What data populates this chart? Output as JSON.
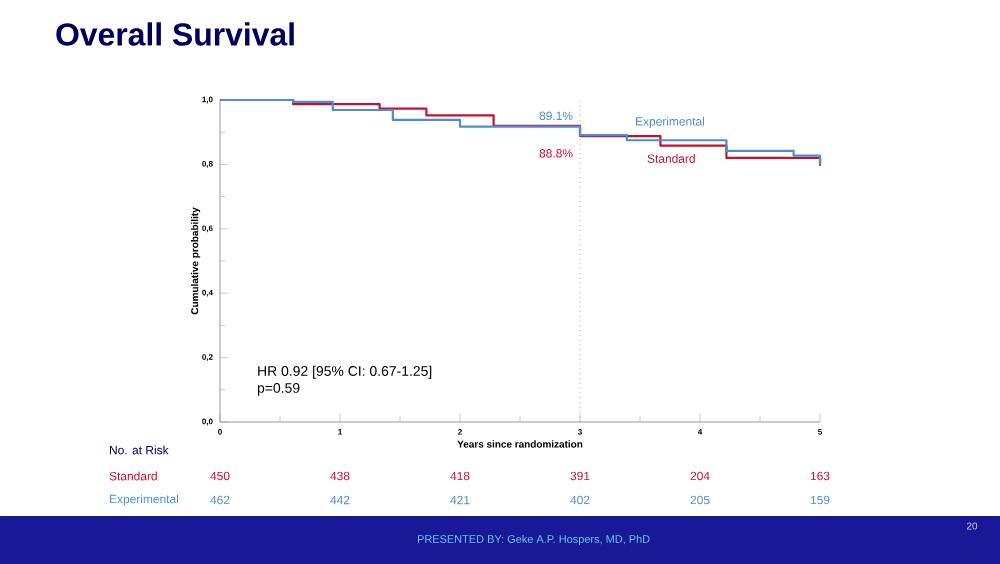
{
  "chart_data": {
    "type": "step",
    "title": "Overall Survival",
    "xlabel": "Years since randomization",
    "ylabel": "Cumulative probability",
    "xlim": [
      0,
      5
    ],
    "xticks": [
      0,
      1,
      2,
      3,
      4,
      5
    ],
    "ylim": [
      0,
      1
    ],
    "yticks": [
      {
        "value": 0,
        "label": "0,0"
      },
      {
        "value": 0.2,
        "label": "0,2"
      },
      {
        "value": 0.4,
        "label": "0,4"
      },
      {
        "value": 0.6,
        "label": "0,6"
      },
      {
        "value": 0.8,
        "label": "0,8"
      },
      {
        "value": 1,
        "label": "1,0"
      }
    ],
    "grid": false,
    "legend": false,
    "marker": "none",
    "series": [
      {
        "name": "Standard",
        "color": "#c8102e",
        "x": [
          0,
          0.61,
          1.33,
          1.72,
          2.28,
          3.0,
          3.28,
          3.67,
          4.22,
          5.0
        ],
        "values": [
          1.0,
          0.987,
          0.973,
          0.952,
          0.92,
          0.888,
          0.888,
          0.858,
          0.82,
          0.796
        ]
      },
      {
        "name": "Experimental",
        "color": "#4a8fd4",
        "x": [
          0,
          0.61,
          0.94,
          1.44,
          2.0,
          3.0,
          3.39,
          4.22,
          4.78,
          5.0
        ],
        "values": [
          1.0,
          0.994,
          0.969,
          0.938,
          0.917,
          0.891,
          0.875,
          0.842,
          0.827,
          0.8
        ]
      }
    ],
    "ref_lines": [
      {
        "axis": "x",
        "value": 3,
        "line_style": "dotted",
        "color": "#808080"
      }
    ],
    "annotations": [
      {
        "text": "89.1%",
        "x": 3,
        "y": 0.891
      },
      {
        "text": "88.8%",
        "x": 3,
        "y": 0.888
      },
      "HR 0.92 [95% CI: 0.67-1.25]",
      "p=0.59",
      "No. at Risk",
      "450",
      "438",
      "418",
      "391",
      "204",
      "163",
      "462",
      "442",
      "421",
      "402",
      "205",
      "159",
      "PRESENTED BY: Geke A.P. Hospers, MD, PhD",
      "20"
    ]
  }
}
